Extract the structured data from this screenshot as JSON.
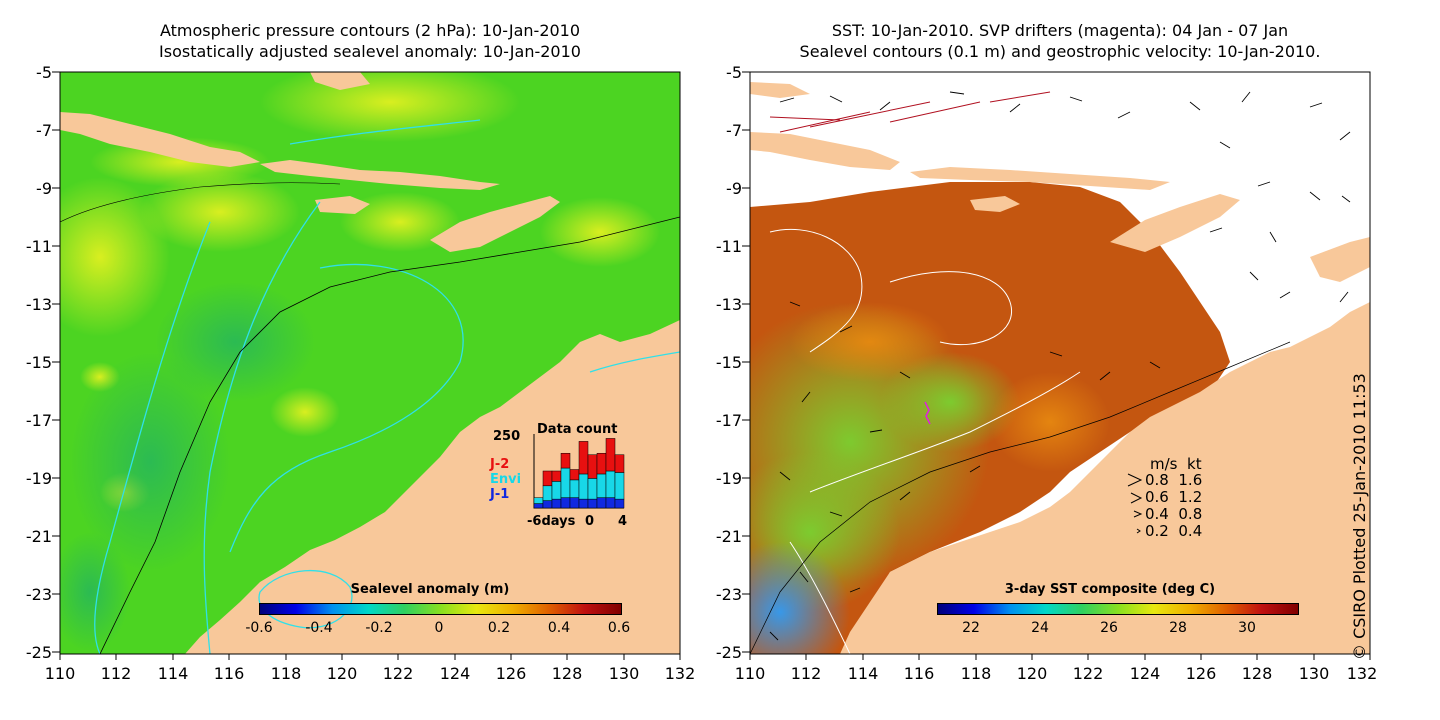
{
  "left_panel": {
    "title_line1": "Atmospheric pressure contours (2 hPa): 10-Jan-2010",
    "title_line2": "Isostatically adjusted sealevel anomaly: 10-Jan-2010",
    "colorbar": {
      "label": "Sealevel anomaly (m)",
      "ticks": [
        "-0.6",
        "-0.4",
        "-0.2",
        "0",
        "0.2",
        "0.4",
        "0.6"
      ],
      "range": [
        -0.6,
        0.6
      ]
    },
    "data_count": {
      "title": "Data count",
      "ymax_label": "250",
      "series_labels": [
        "J-2",
        "Envi",
        "J-1"
      ],
      "series_colors": [
        "#e81010",
        "#18d8e8",
        "#1028e0"
      ],
      "xlabels": [
        "-6days",
        "0",
        "4"
      ],
      "ymax": 250,
      "days": [
        -6,
        -5,
        -4,
        -3,
        -2,
        -1,
        0,
        1,
        2,
        3
      ],
      "J1": [
        15,
        25,
        30,
        35,
        35,
        30,
        30,
        35,
        35,
        30
      ],
      "Envi": [
        20,
        50,
        60,
        100,
        60,
        85,
        70,
        80,
        90,
        90
      ],
      "J2": [
        0,
        50,
        35,
        50,
        35,
        110,
        80,
        70,
        110,
        60
      ]
    }
  },
  "right_panel": {
    "title_line1": "SST: 10-Jan-2010. SVP drifters (magenta): 04 Jan - 07 Jan",
    "title_line2": "Sealevel contours (0.1 m) and geostrophic velocity: 10-Jan-2010.",
    "colorbar": {
      "label": "3-day SST composite (deg C)",
      "ticks": [
        "22",
        "24",
        "26",
        "28",
        "30"
      ],
      "range": [
        21,
        31.5
      ]
    },
    "velocity_legend": {
      "header": "m/s  kt",
      "rows": [
        "0.8  1.6",
        "0.6  1.2",
        "0.4  0.8",
        "0.2  0.4"
      ]
    }
  },
  "axes": {
    "yticks": [
      "-5",
      "-7",
      "-9",
      "-11",
      "-13",
      "-15",
      "-17",
      "-19",
      "-21",
      "-23",
      "-25"
    ],
    "xticks": [
      "110",
      "112",
      "114",
      "116",
      "118",
      "120",
      "122",
      "124",
      "126",
      "128",
      "130",
      "132"
    ],
    "lat_range": [
      -25,
      -5
    ],
    "lon_range": [
      110,
      132
    ]
  },
  "credit": "© CSIRO Plotted 25-Jan-2010 11:53",
  "colors": {
    "land": "#f8c89a",
    "sla_field": "#48d020",
    "sst_field": "#c85a10",
    "no_data": "#ffffff"
  }
}
